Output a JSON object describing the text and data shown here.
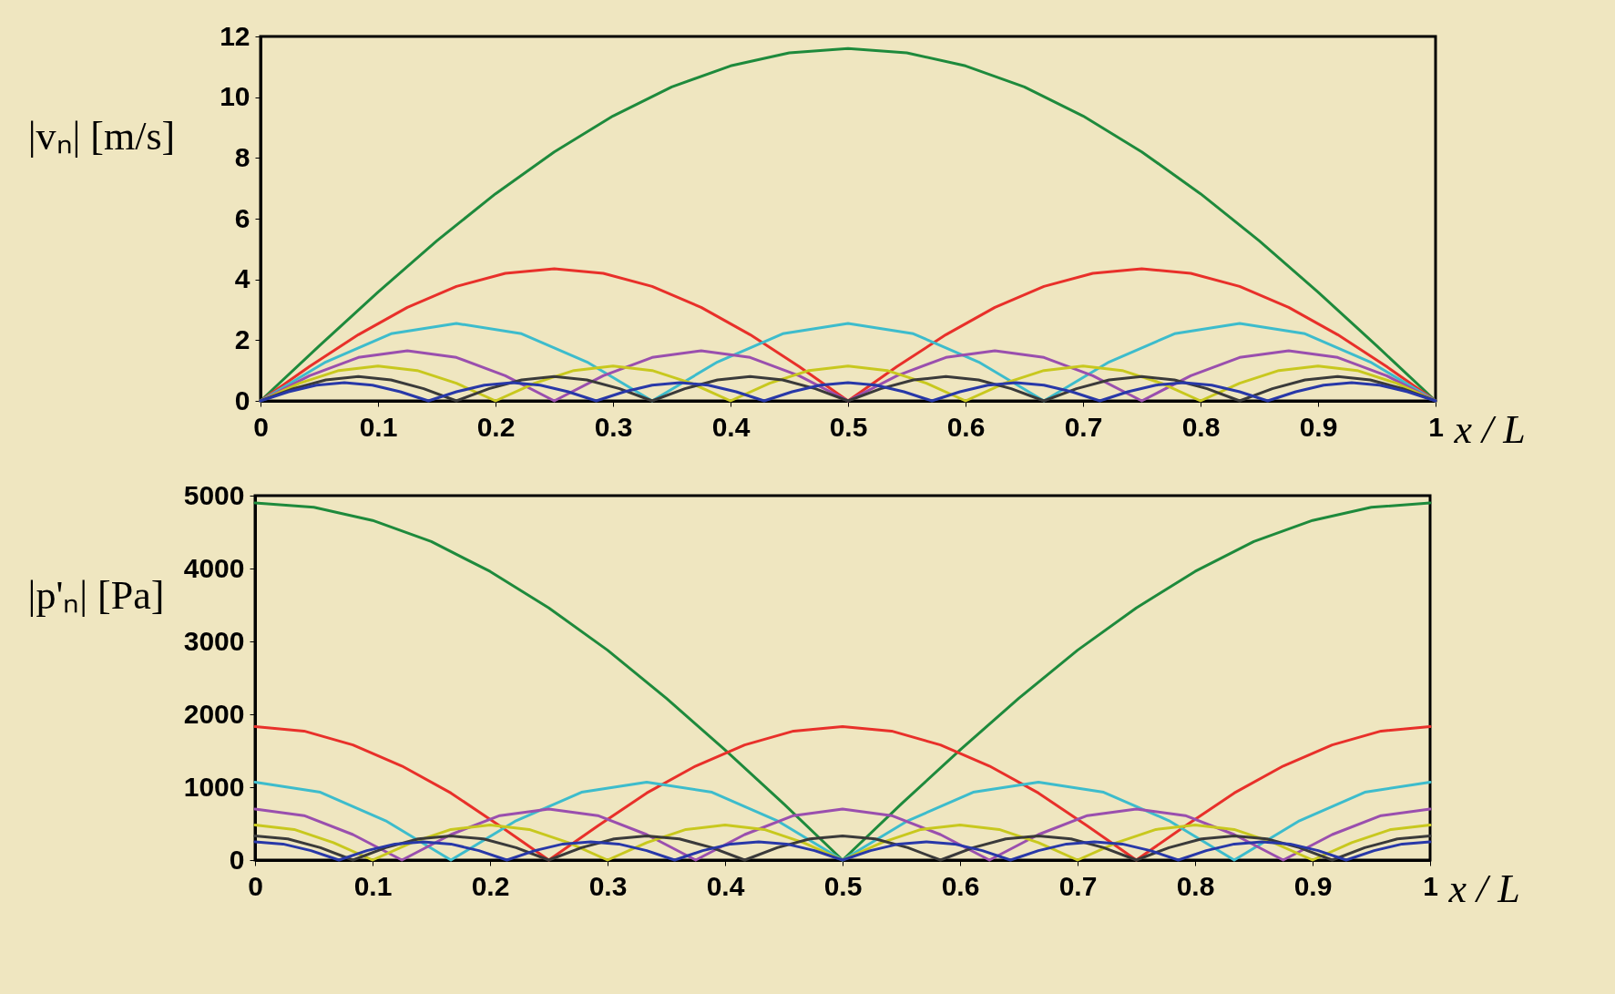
{
  "chart_data": [
    {
      "type": "line",
      "xlabel": "x / L",
      "ylabel": "|vₙ| [m/s]",
      "xlim": [
        0,
        1
      ],
      "xticks": [
        0,
        0.1,
        0.2,
        0.3,
        0.4,
        0.5,
        0.6,
        0.7,
        0.8,
        0.9,
        1
      ],
      "ylim": [
        0,
        12
      ],
      "yticks": [
        0,
        2,
        4,
        6,
        8,
        10,
        12
      ],
      "series": [
        {
          "color": "#1e8a3c",
          "x": [
            0,
            0.05,
            0.1,
            0.15,
            0.2,
            0.25,
            0.3,
            0.35,
            0.4,
            0.45,
            0.5,
            0.55,
            0.6,
            0.65,
            0.7,
            0.75,
            0.8,
            0.85,
            0.9,
            0.95,
            1
          ],
          "values": [
            0,
            1.81,
            3.58,
            5.27,
            6.82,
            8.2,
            9.38,
            10.34,
            11.03,
            11.46,
            11.6,
            11.46,
            11.03,
            10.34,
            9.38,
            8.2,
            6.82,
            5.27,
            3.58,
            1.81,
            0
          ]
        },
        {
          "color": "#e8302a",
          "x": [
            0,
            0.0417,
            0.0833,
            0.125,
            0.1667,
            0.2083,
            0.25,
            0.2917,
            0.3333,
            0.375,
            0.4167,
            0.4583,
            0.5,
            0.5417,
            0.5833,
            0.625,
            0.6667,
            0.7083,
            0.75,
            0.7917,
            0.8333,
            0.875,
            0.9167,
            0.9583,
            1
          ],
          "values": [
            0,
            1.13,
            2.18,
            3.08,
            3.77,
            4.2,
            4.35,
            4.2,
            3.77,
            3.08,
            2.18,
            1.13,
            0,
            1.13,
            2.18,
            3.08,
            3.77,
            4.2,
            4.35,
            4.2,
            3.77,
            3.08,
            2.18,
            1.13,
            0
          ]
        },
        {
          "color": "#3dbccc",
          "x": [
            0,
            0.0556,
            0.1111,
            0.1667,
            0.2222,
            0.2778,
            0.3333,
            0.3889,
            0.4444,
            0.5,
            0.5556,
            0.6111,
            0.6667,
            0.7222,
            0.7778,
            0.8333,
            0.8889,
            0.9444,
            1
          ],
          "values": [
            0,
            1.28,
            2.21,
            2.55,
            2.21,
            1.28,
            0,
            1.28,
            2.21,
            2.55,
            2.21,
            1.28,
            0,
            1.28,
            2.21,
            2.55,
            2.21,
            1.28,
            0
          ]
        },
        {
          "color": "#9a4fae",
          "x": [
            0,
            0.0417,
            0.0833,
            0.125,
            0.1667,
            0.2083,
            0.25,
            0.2917,
            0.3333,
            0.375,
            0.4167,
            0.4583,
            0.5,
            0.5417,
            0.5833,
            0.625,
            0.6667,
            0.7083,
            0.75,
            0.7917,
            0.8333,
            0.875,
            0.9167,
            0.9583,
            1
          ],
          "values": [
            0,
            0.83,
            1.43,
            1.65,
            1.43,
            0.83,
            0,
            0.83,
            1.43,
            1.65,
            1.43,
            0.83,
            0,
            0.83,
            1.43,
            1.65,
            1.43,
            0.83,
            0,
            0.83,
            1.43,
            1.65,
            1.43,
            0.83,
            0
          ]
        },
        {
          "color": "#c8c81e",
          "x": [
            0,
            0.0333,
            0.0667,
            0.1,
            0.1333,
            0.1667,
            0.2,
            0.2333,
            0.2667,
            0.3,
            0.3333,
            0.3667,
            0.4,
            0.4333,
            0.4667,
            0.5,
            0.5333,
            0.5667,
            0.6,
            0.6333,
            0.6667,
            0.7,
            0.7333,
            0.7667,
            0.8,
            0.8333,
            0.8667,
            0.9,
            0.9333,
            0.9667,
            1
          ],
          "values": [
            0,
            0.58,
            1,
            1.15,
            1,
            0.58,
            0,
            0.58,
            1,
            1.15,
            1,
            0.58,
            0,
            0.58,
            1,
            1.15,
            1,
            0.58,
            0,
            0.58,
            1,
            1.15,
            1,
            0.58,
            0,
            0.58,
            1,
            1.15,
            1,
            0.58,
            0
          ]
        },
        {
          "color": "#3a3a3a",
          "x": [
            0,
            0.0278,
            0.0556,
            0.0833,
            0.1111,
            0.1389,
            0.1667,
            0.1944,
            0.2222,
            0.25,
            0.2778,
            0.3056,
            0.3333,
            0.3611,
            0.3889,
            0.4167,
            0.4444,
            0.4722,
            0.5,
            0.5278,
            0.5556,
            0.5833,
            0.6111,
            0.6389,
            0.6667,
            0.6944,
            0.7222,
            0.75,
            0.7778,
            0.8056,
            0.8333,
            0.8611,
            0.8889,
            0.9167,
            0.9444,
            0.9722,
            1
          ],
          "values": [
            0,
            0.4,
            0.69,
            0.8,
            0.69,
            0.4,
            0,
            0.4,
            0.69,
            0.8,
            0.69,
            0.4,
            0,
            0.4,
            0.69,
            0.8,
            0.69,
            0.4,
            0,
            0.4,
            0.69,
            0.8,
            0.69,
            0.4,
            0,
            0.4,
            0.69,
            0.8,
            0.69,
            0.4,
            0,
            0.4,
            0.69,
            0.8,
            0.69,
            0.4,
            0
          ]
        },
        {
          "color": "#2838a8",
          "x": [
            0,
            0.0238,
            0.0476,
            0.0714,
            0.0952,
            0.119,
            0.1429,
            0.1667,
            0.1905,
            0.2143,
            0.2381,
            0.2619,
            0.2857,
            0.3095,
            0.3333,
            0.3571,
            0.381,
            0.4048,
            0.4286,
            0.4524,
            0.4762,
            0.5,
            0.5238,
            0.5476,
            0.5714,
            0.5952,
            0.619,
            0.6429,
            0.6667,
            0.6905,
            0.7143,
            0.7381,
            0.7619,
            0.7857,
            0.8095,
            0.8333,
            0.8571,
            0.881,
            0.9048,
            0.9286,
            0.9524,
            0.9762,
            1
          ],
          "values": [
            0,
            0.3,
            0.52,
            0.6,
            0.52,
            0.3,
            0,
            0.3,
            0.52,
            0.6,
            0.52,
            0.3,
            0,
            0.3,
            0.52,
            0.6,
            0.52,
            0.3,
            0,
            0.3,
            0.52,
            0.6,
            0.52,
            0.3,
            0,
            0.3,
            0.52,
            0.6,
            0.52,
            0.3,
            0,
            0.3,
            0.52,
            0.6,
            0.52,
            0.3,
            0,
            0.3,
            0.52,
            0.6,
            0.52,
            0.3,
            0
          ]
        }
      ]
    },
    {
      "type": "line",
      "xlabel": "x / L",
      "ylabel": "|p'ₙ| [Pa]",
      "xlim": [
        0,
        1
      ],
      "xticks": [
        0,
        0.1,
        0.2,
        0.3,
        0.4,
        0.5,
        0.6,
        0.7,
        0.8,
        0.9,
        1
      ],
      "ylim": [
        0,
        5000
      ],
      "yticks": [
        0,
        1000,
        2000,
        3000,
        4000,
        5000
      ],
      "series": [
        {
          "color": "#1e8a3c",
          "x": [
            0,
            0.05,
            0.1,
            0.15,
            0.2,
            0.25,
            0.3,
            0.35,
            0.4,
            0.45,
            0.5,
            0.55,
            0.6,
            0.65,
            0.7,
            0.75,
            0.8,
            0.85,
            0.9,
            0.95,
            1
          ],
          "values": [
            4900,
            4840,
            4660,
            4370,
            3960,
            3460,
            2880,
            2220,
            1510,
            770,
            0,
            770,
            1510,
            2220,
            2880,
            3460,
            3960,
            4370,
            4660,
            4840,
            4900
          ]
        },
        {
          "color": "#e8302a",
          "x": [
            0,
            0.0417,
            0.0833,
            0.125,
            0.1667,
            0.2083,
            0.25,
            0.2917,
            0.3333,
            0.375,
            0.4167,
            0.4583,
            0.5,
            0.5417,
            0.5833,
            0.625,
            0.6667,
            0.7083,
            0.75,
            0.7917,
            0.8333,
            0.875,
            0.9167,
            0.9583,
            1
          ],
          "values": [
            1830,
            1770,
            1580,
            1290,
            920,
            470,
            0,
            470,
            920,
            1290,
            1580,
            1770,
            1830,
            1770,
            1580,
            1290,
            920,
            470,
            0,
            470,
            920,
            1290,
            1580,
            1770,
            1830
          ]
        },
        {
          "color": "#3dbccc",
          "x": [
            0,
            0.0556,
            0.1111,
            0.1667,
            0.2222,
            0.2778,
            0.3333,
            0.3889,
            0.4444,
            0.5,
            0.5556,
            0.6111,
            0.6667,
            0.7222,
            0.7778,
            0.8333,
            0.8889,
            0.9444,
            1
          ],
          "values": [
            1070,
            930,
            540,
            0,
            540,
            930,
            1070,
            930,
            540,
            0,
            540,
            930,
            1070,
            930,
            540,
            0,
            540,
            930,
            1070
          ]
        },
        {
          "color": "#9a4fae",
          "x": [
            0,
            0.0417,
            0.0833,
            0.125,
            0.1667,
            0.2083,
            0.25,
            0.2917,
            0.3333,
            0.375,
            0.4167,
            0.4583,
            0.5,
            0.5417,
            0.5833,
            0.625,
            0.6667,
            0.7083,
            0.75,
            0.7917,
            0.8333,
            0.875,
            0.9167,
            0.9583,
            1
          ],
          "values": [
            700,
            610,
            350,
            0,
            350,
            610,
            700,
            610,
            350,
            0,
            350,
            610,
            700,
            610,
            350,
            0,
            350,
            610,
            700,
            610,
            350,
            0,
            350,
            610,
            700
          ]
        },
        {
          "color": "#c8c81e",
          "x": [
            0,
            0.0333,
            0.0667,
            0.1,
            0.1333,
            0.1667,
            0.2,
            0.2333,
            0.2667,
            0.3,
            0.3333,
            0.3667,
            0.4,
            0.4333,
            0.4667,
            0.5,
            0.5333,
            0.5667,
            0.6,
            0.6333,
            0.6667,
            0.7,
            0.7333,
            0.7667,
            0.8,
            0.8333,
            0.8667,
            0.9,
            0.9333,
            0.9667,
            1
          ],
          "values": [
            480,
            420,
            240,
            0,
            240,
            420,
            480,
            420,
            240,
            0,
            240,
            420,
            480,
            420,
            240,
            0,
            240,
            420,
            480,
            420,
            240,
            0,
            240,
            420,
            480,
            420,
            240,
            0,
            240,
            420,
            480
          ]
        },
        {
          "color": "#3a3a3a",
          "x": [
            0,
            0.0278,
            0.0556,
            0.0833,
            0.1111,
            0.1389,
            0.1667,
            0.1944,
            0.2222,
            0.25,
            0.2778,
            0.3056,
            0.3333,
            0.3611,
            0.3889,
            0.4167,
            0.4444,
            0.4722,
            0.5,
            0.5278,
            0.5556,
            0.5833,
            0.6111,
            0.6389,
            0.6667,
            0.6944,
            0.7222,
            0.75,
            0.7778,
            0.8056,
            0.8333,
            0.8611,
            0.8889,
            0.9167,
            0.9444,
            0.9722,
            1
          ],
          "values": [
            330,
            290,
            170,
            0,
            170,
            290,
            330,
            290,
            170,
            0,
            170,
            290,
            330,
            290,
            170,
            0,
            170,
            290,
            330,
            290,
            170,
            0,
            170,
            290,
            330,
            290,
            170,
            0,
            170,
            290,
            330,
            290,
            170,
            0,
            170,
            290,
            330
          ]
        },
        {
          "color": "#2838a8",
          "x": [
            0,
            0.0238,
            0.0476,
            0.0714,
            0.0952,
            0.119,
            0.1429,
            0.1667,
            0.1905,
            0.2143,
            0.2381,
            0.2619,
            0.2857,
            0.3095,
            0.3333,
            0.3571,
            0.381,
            0.4048,
            0.4286,
            0.4524,
            0.4762,
            0.5,
            0.5238,
            0.5476,
            0.5714,
            0.5952,
            0.619,
            0.6429,
            0.6667,
            0.6905,
            0.7143,
            0.7381,
            0.7619,
            0.7857,
            0.8095,
            0.8333,
            0.8571,
            0.881,
            0.9048,
            0.9286,
            0.9524,
            0.9762,
            1
          ],
          "values": [
            250,
            220,
            130,
            0,
            130,
            220,
            250,
            220,
            130,
            0,
            130,
            220,
            250,
            220,
            130,
            0,
            130,
            220,
            250,
            220,
            130,
            0,
            130,
            220,
            250,
            220,
            130,
            0,
            130,
            220,
            250,
            220,
            130,
            0,
            130,
            220,
            250,
            220,
            130,
            0,
            130,
            220,
            250
          ]
        }
      ]
    }
  ]
}
